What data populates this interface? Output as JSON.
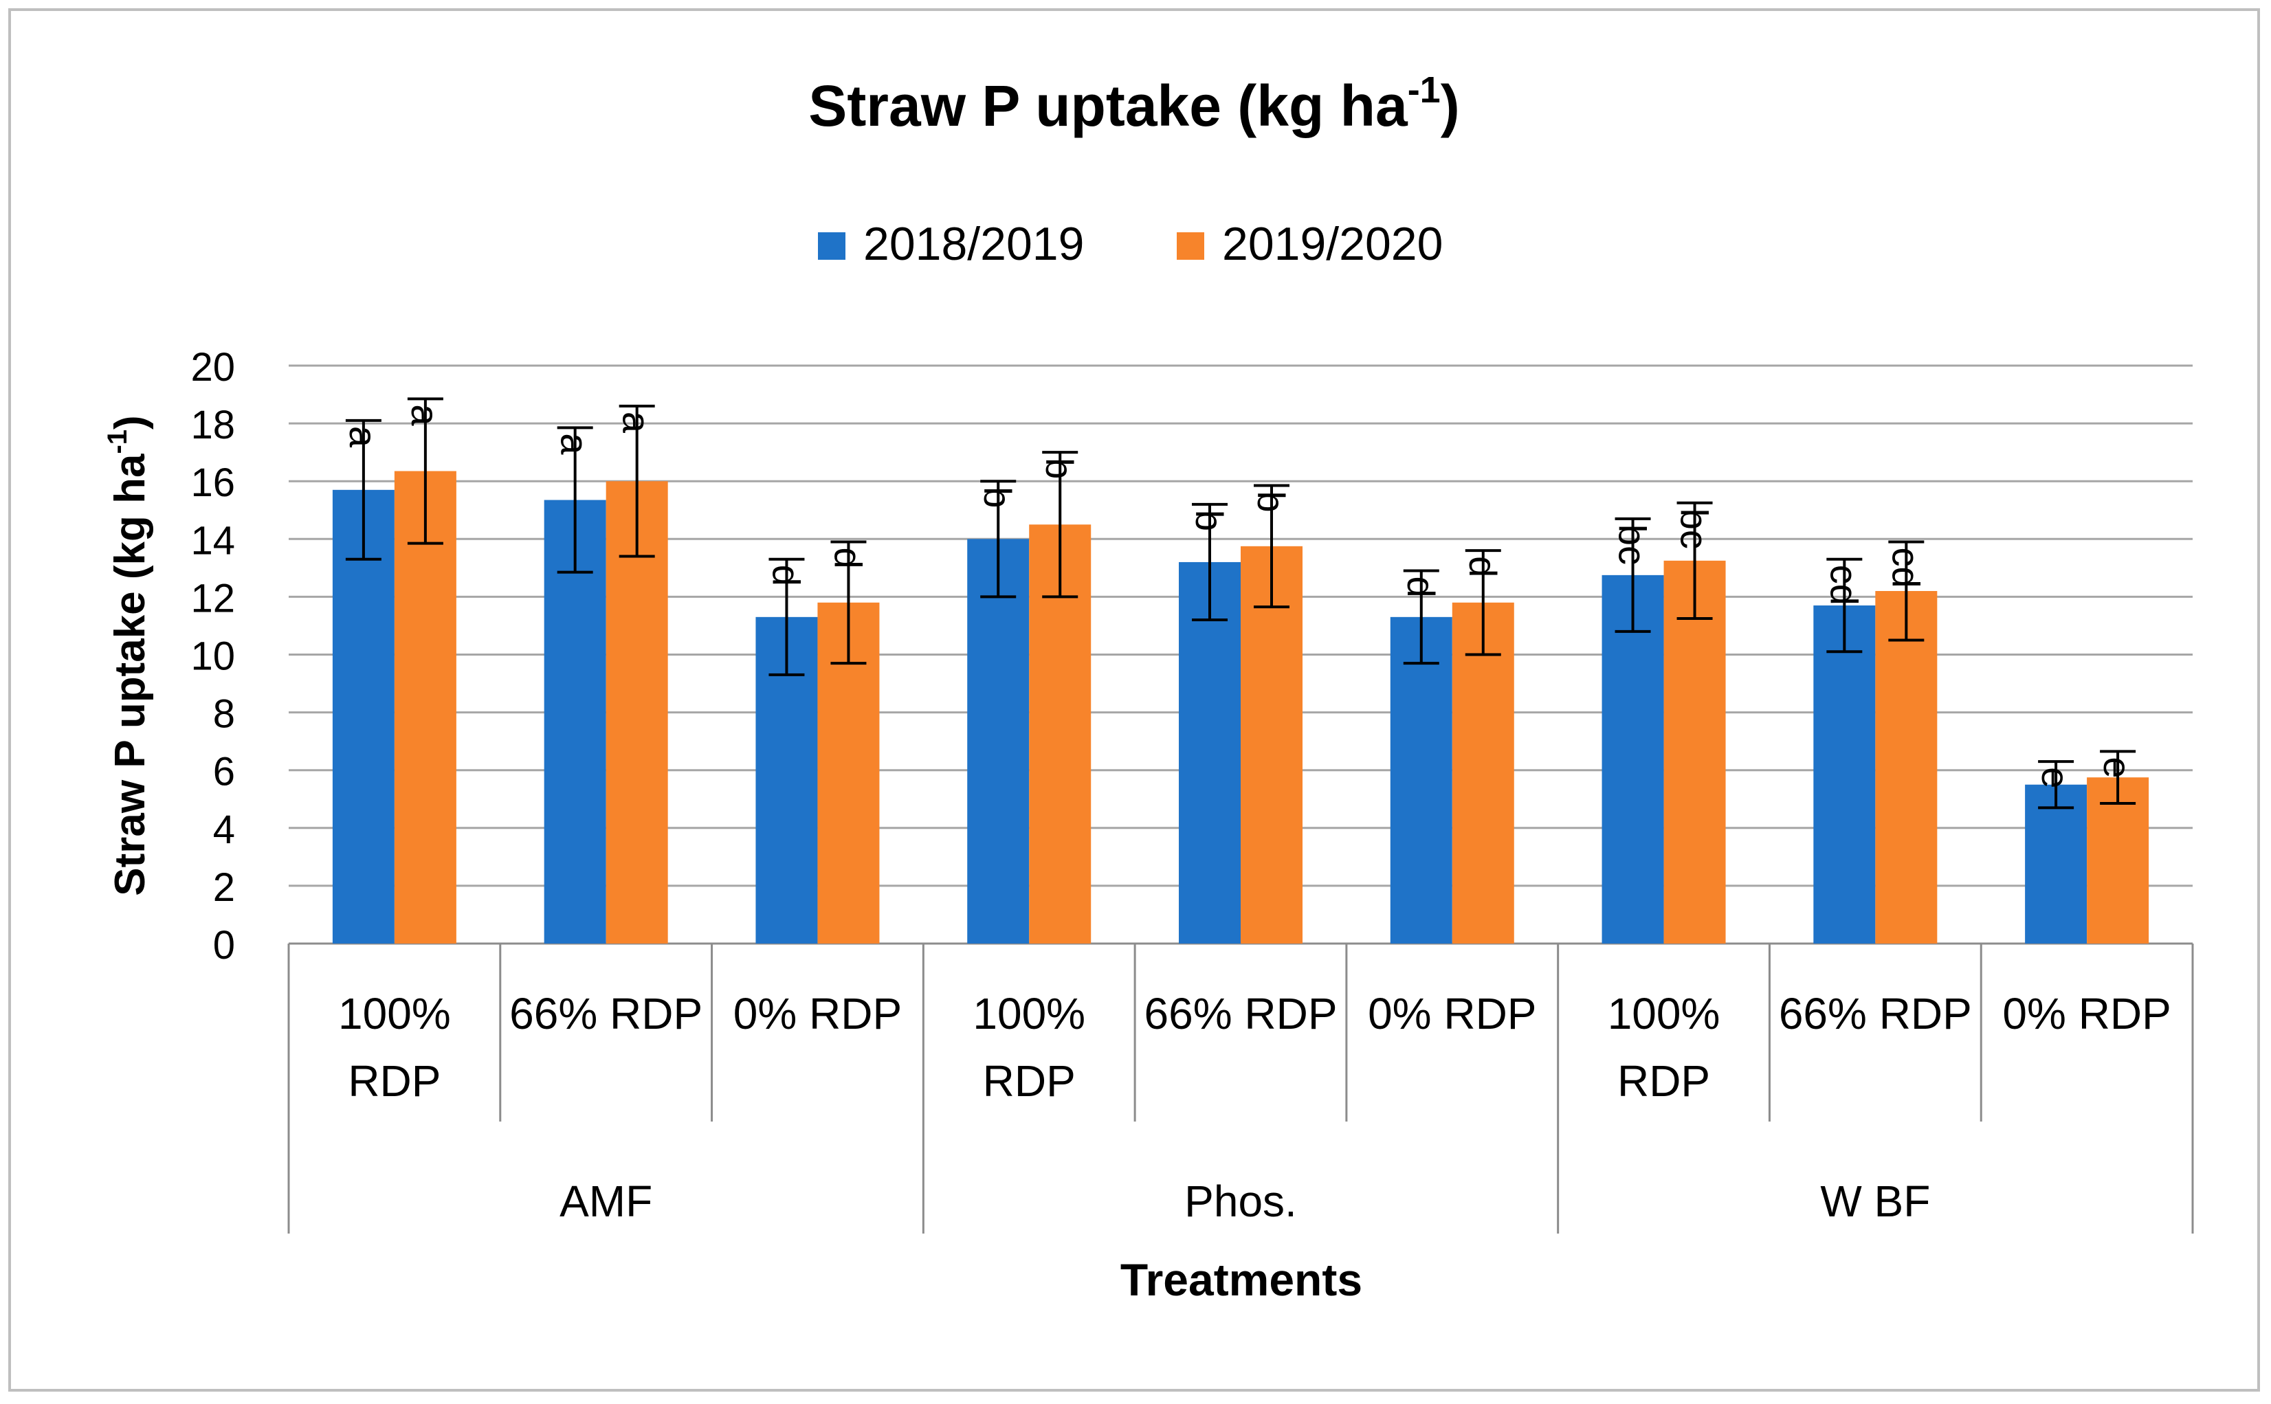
{
  "chart_data": {
    "type": "bar",
    "title": "Straw P uptake (kg ha",
    "title_superscript": "-1",
    "title_close": ")",
    "ylabel": "Straw P uptake (kg ha",
    "ylabel_superscript": "-1",
    "ylabel_close": ")",
    "xlabel": "Treatments",
    "ylim": [
      0,
      20
    ],
    "yticks": [
      0,
      2,
      4,
      6,
      8,
      10,
      12,
      14,
      16,
      18,
      20
    ],
    "grid": true,
    "legend_position": "top-center",
    "groups": [
      {
        "label": "AMF",
        "categories": [
          "100% RDP",
          "66% RDP",
          "0% RDP"
        ]
      },
      {
        "label": "Phos.",
        "categories": [
          "100% RDP",
          "66% RDP",
          "0% RDP"
        ]
      },
      {
        "label": "W BF",
        "categories": [
          "100% RDP",
          "66% RDP",
          "0% RDP"
        ]
      }
    ],
    "series": [
      {
        "name": "2018/2019",
        "color": "#1f73c8",
        "values": [
          15.7,
          15.35,
          11.3,
          14.0,
          13.2,
          11.3,
          12.75,
          11.7,
          5.5
        ],
        "errors": [
          2.4,
          2.5,
          2.0,
          2.0,
          2.0,
          1.6,
          1.95,
          1.6,
          0.8
        ],
        "labels": [
          "a",
          "a",
          "d",
          "b",
          "b",
          "d",
          "bc",
          "cd",
          "e"
        ]
      },
      {
        "name": "2019/2020",
        "color": "#f7842b",
        "values": [
          16.35,
          16.0,
          11.8,
          14.5,
          13.75,
          11.8,
          13.25,
          12.2,
          5.75
        ],
        "errors": [
          2.5,
          2.6,
          2.1,
          2.5,
          2.1,
          1.8,
          2.0,
          1.7,
          0.9
        ],
        "labels": [
          "a",
          "a",
          "d",
          "b",
          "b",
          "d",
          "bc",
          "cd",
          "e"
        ]
      }
    ]
  }
}
